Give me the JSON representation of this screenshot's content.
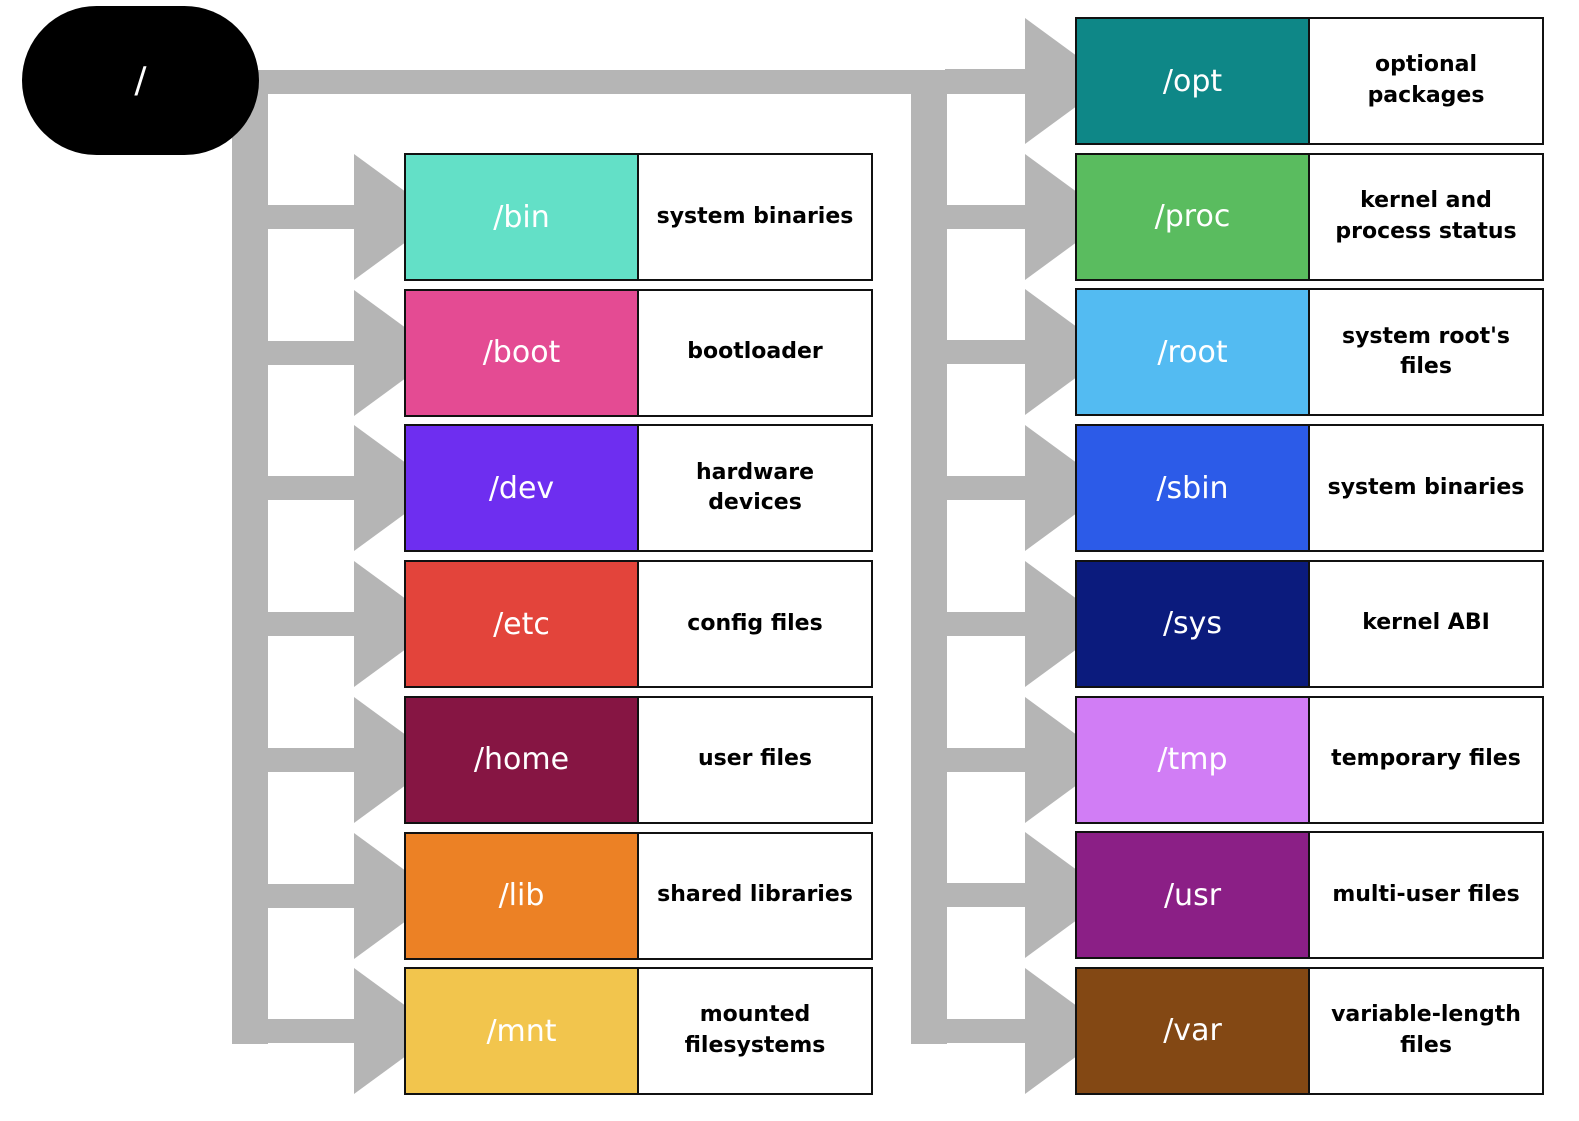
{
  "root": {
    "label": "/"
  },
  "left_column": [
    {
      "name": "/bin",
      "description": "system binaries",
      "color": "#63e0c7"
    },
    {
      "name": "/boot",
      "description": "bootloader",
      "color": "#e44b93"
    },
    {
      "name": "/dev",
      "description": "hardware devices",
      "color": "#6e2ef0"
    },
    {
      "name": "/etc",
      "description": "config files",
      "color": "#e3443b"
    },
    {
      "name": "/home",
      "description": "user files",
      "color": "#861543"
    },
    {
      "name": "/lib",
      "description": "shared libraries",
      "color": "#ec8125"
    },
    {
      "name": "/mnt",
      "description": "mounted filesystems",
      "color": "#f2c54d"
    }
  ],
  "right_column": [
    {
      "name": "/opt",
      "description": "optional packages",
      "color": "#0e8787"
    },
    {
      "name": "/proc",
      "description": "kernel and process status",
      "color": "#5abc5f"
    },
    {
      "name": "/root",
      "description": "system root's files",
      "color": "#53bbf2"
    },
    {
      "name": "/sbin",
      "description": "system binaries",
      "color": "#2c5be8"
    },
    {
      "name": "/sys",
      "description": "kernel ABI",
      "color": "#0b1b7d"
    },
    {
      "name": "/tmp",
      "description": "temporary files",
      "color": "#d17df5"
    },
    {
      "name": "/usr",
      "description": "multi-user files",
      "color": "#8b1f86"
    },
    {
      "name": "/var",
      "description": "variable-length files",
      "color": "#834814"
    }
  ],
  "connector_color": "#b5b5b5"
}
